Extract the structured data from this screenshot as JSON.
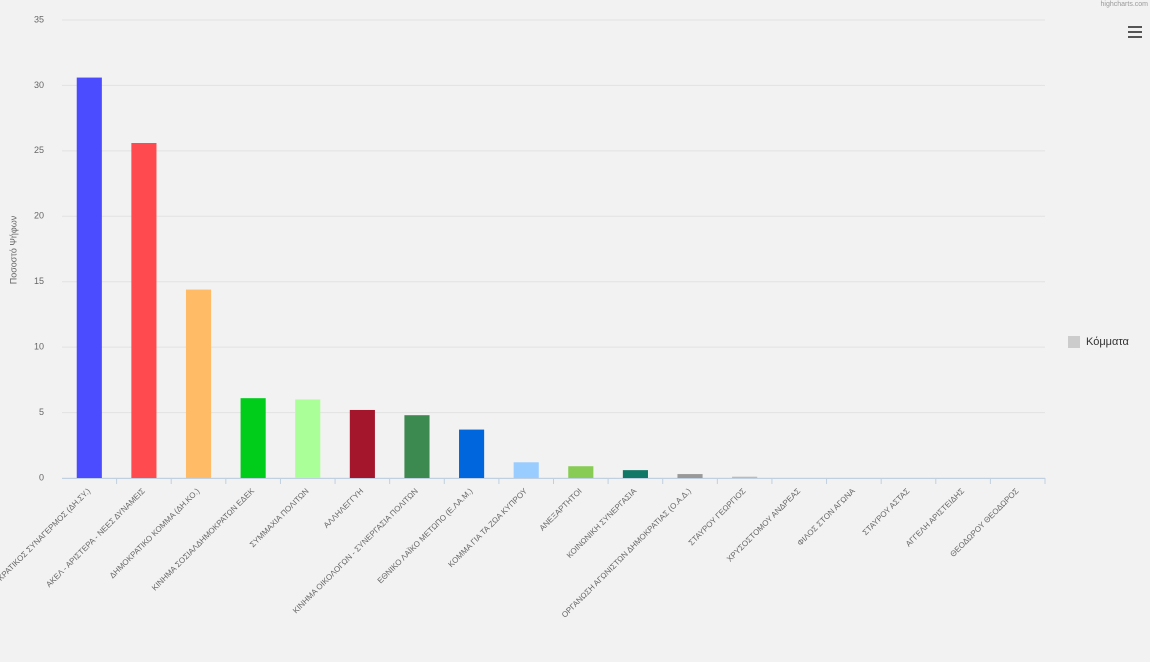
{
  "chart_data": {
    "type": "bar",
    "credits": "highcharts.com",
    "y_axis_label": "Ποσοστό Ψήφων",
    "categories": [
      "ΔΗΜΟΚΡΑΤΙΚΟΣ ΣΥΝΑΓΕΡΜΟΣ (ΔΗ.ΣΥ.)",
      "ΑΚΕΛ - ΑΡΙΣΤΕΡΑ - ΝΕΕΣ ΔΥΝΑΜΕΙΣ",
      "ΔΗΜΟΚΡΑΤΙΚΟ ΚΟΜΜΑ (ΔΗ.ΚΟ.)",
      "ΚΙΝΗΜΑ ΣΟΣΙΑΛΔΗΜΟΚΡΑΤΩΝ ΕΔΕΚ",
      "ΣΥΜΜΑΧΙΑ ΠΟΛΙΤΩΝ",
      "ΑΛΛΗΛΕΓΓΥΗ",
      "ΚΙΝΗΜΑ ΟΙΚΟΛΟΓΩΝ - ΣΥΝΕΡΓΑΣΙΑ ΠΟΛΙΤΩΝ",
      "ΕΘΝΙΚΟ ΛΑΪΚΟ ΜΕΤΩΠΟ (Ε.ΛΑ.Μ.)",
      "ΚΟΜΜΑ ΓΙΑ ΤΑ ΖΩΑ ΚΥΠΡΟΥ",
      "ΑΝΕΞΑΡΤΗΤΟΙ",
      "ΚΟΙΝΩΝΙΚΗ ΣΥΝΕΡΓΑΣΙΑ",
      "ΟΡΓΑΝΩΣΗ ΑΓΩΝΙΣΤΩΝ ΔΗΜΟΚΡΑΤΙΑΣ (Ο.Α.Δ.)",
      "ΣΤΑΥΡΟΥ ΓΕΩΡΓΙΟΣ",
      "ΧΡΥΣΟΣΤΟΜΟΥ ΑΝΔΡΕΑΣ",
      "ΦΙΛΟΣ ΣΤΟΝ ΑΓΩΝΑ",
      "ΣΤΑΥΡΟΥ ΑΣΤΑΣ",
      "ΑΓΓΕΛΗ ΑΡΙΣΤΕΙΔΗΣ",
      "ΘΕΟΔΩΡΟΥ ΘΕΟΔΩΡΟΣ"
    ],
    "series": [
      {
        "name": "Κόμματα",
        "color": "#cccccc",
        "values": [
          30.6,
          25.6,
          14.4,
          6.1,
          6.0,
          5.2,
          4.8,
          3.7,
          1.2,
          0.9,
          0.6,
          0.3,
          0.1,
          0,
          0,
          0,
          0,
          0
        ],
        "colors": [
          "#4b4bff",
          "#ff4a4f",
          "#ffbb66",
          "#00cc1a",
          "#aaff99",
          "#a3162b",
          "#3d8a50",
          "#0066dd",
          "#99ccff",
          "#88cc55",
          "#117766",
          "#999999",
          "#bbbbbb",
          "#bbbbbb",
          "#bbbbbb",
          "#bbbbbb",
          "#bbbbbb",
          "#bbbbbb"
        ]
      }
    ],
    "ylim": [
      0,
      35
    ],
    "yticks": [
      0,
      5,
      10,
      15,
      20,
      25,
      30,
      35
    ],
    "grid": true,
    "legend": "right"
  }
}
